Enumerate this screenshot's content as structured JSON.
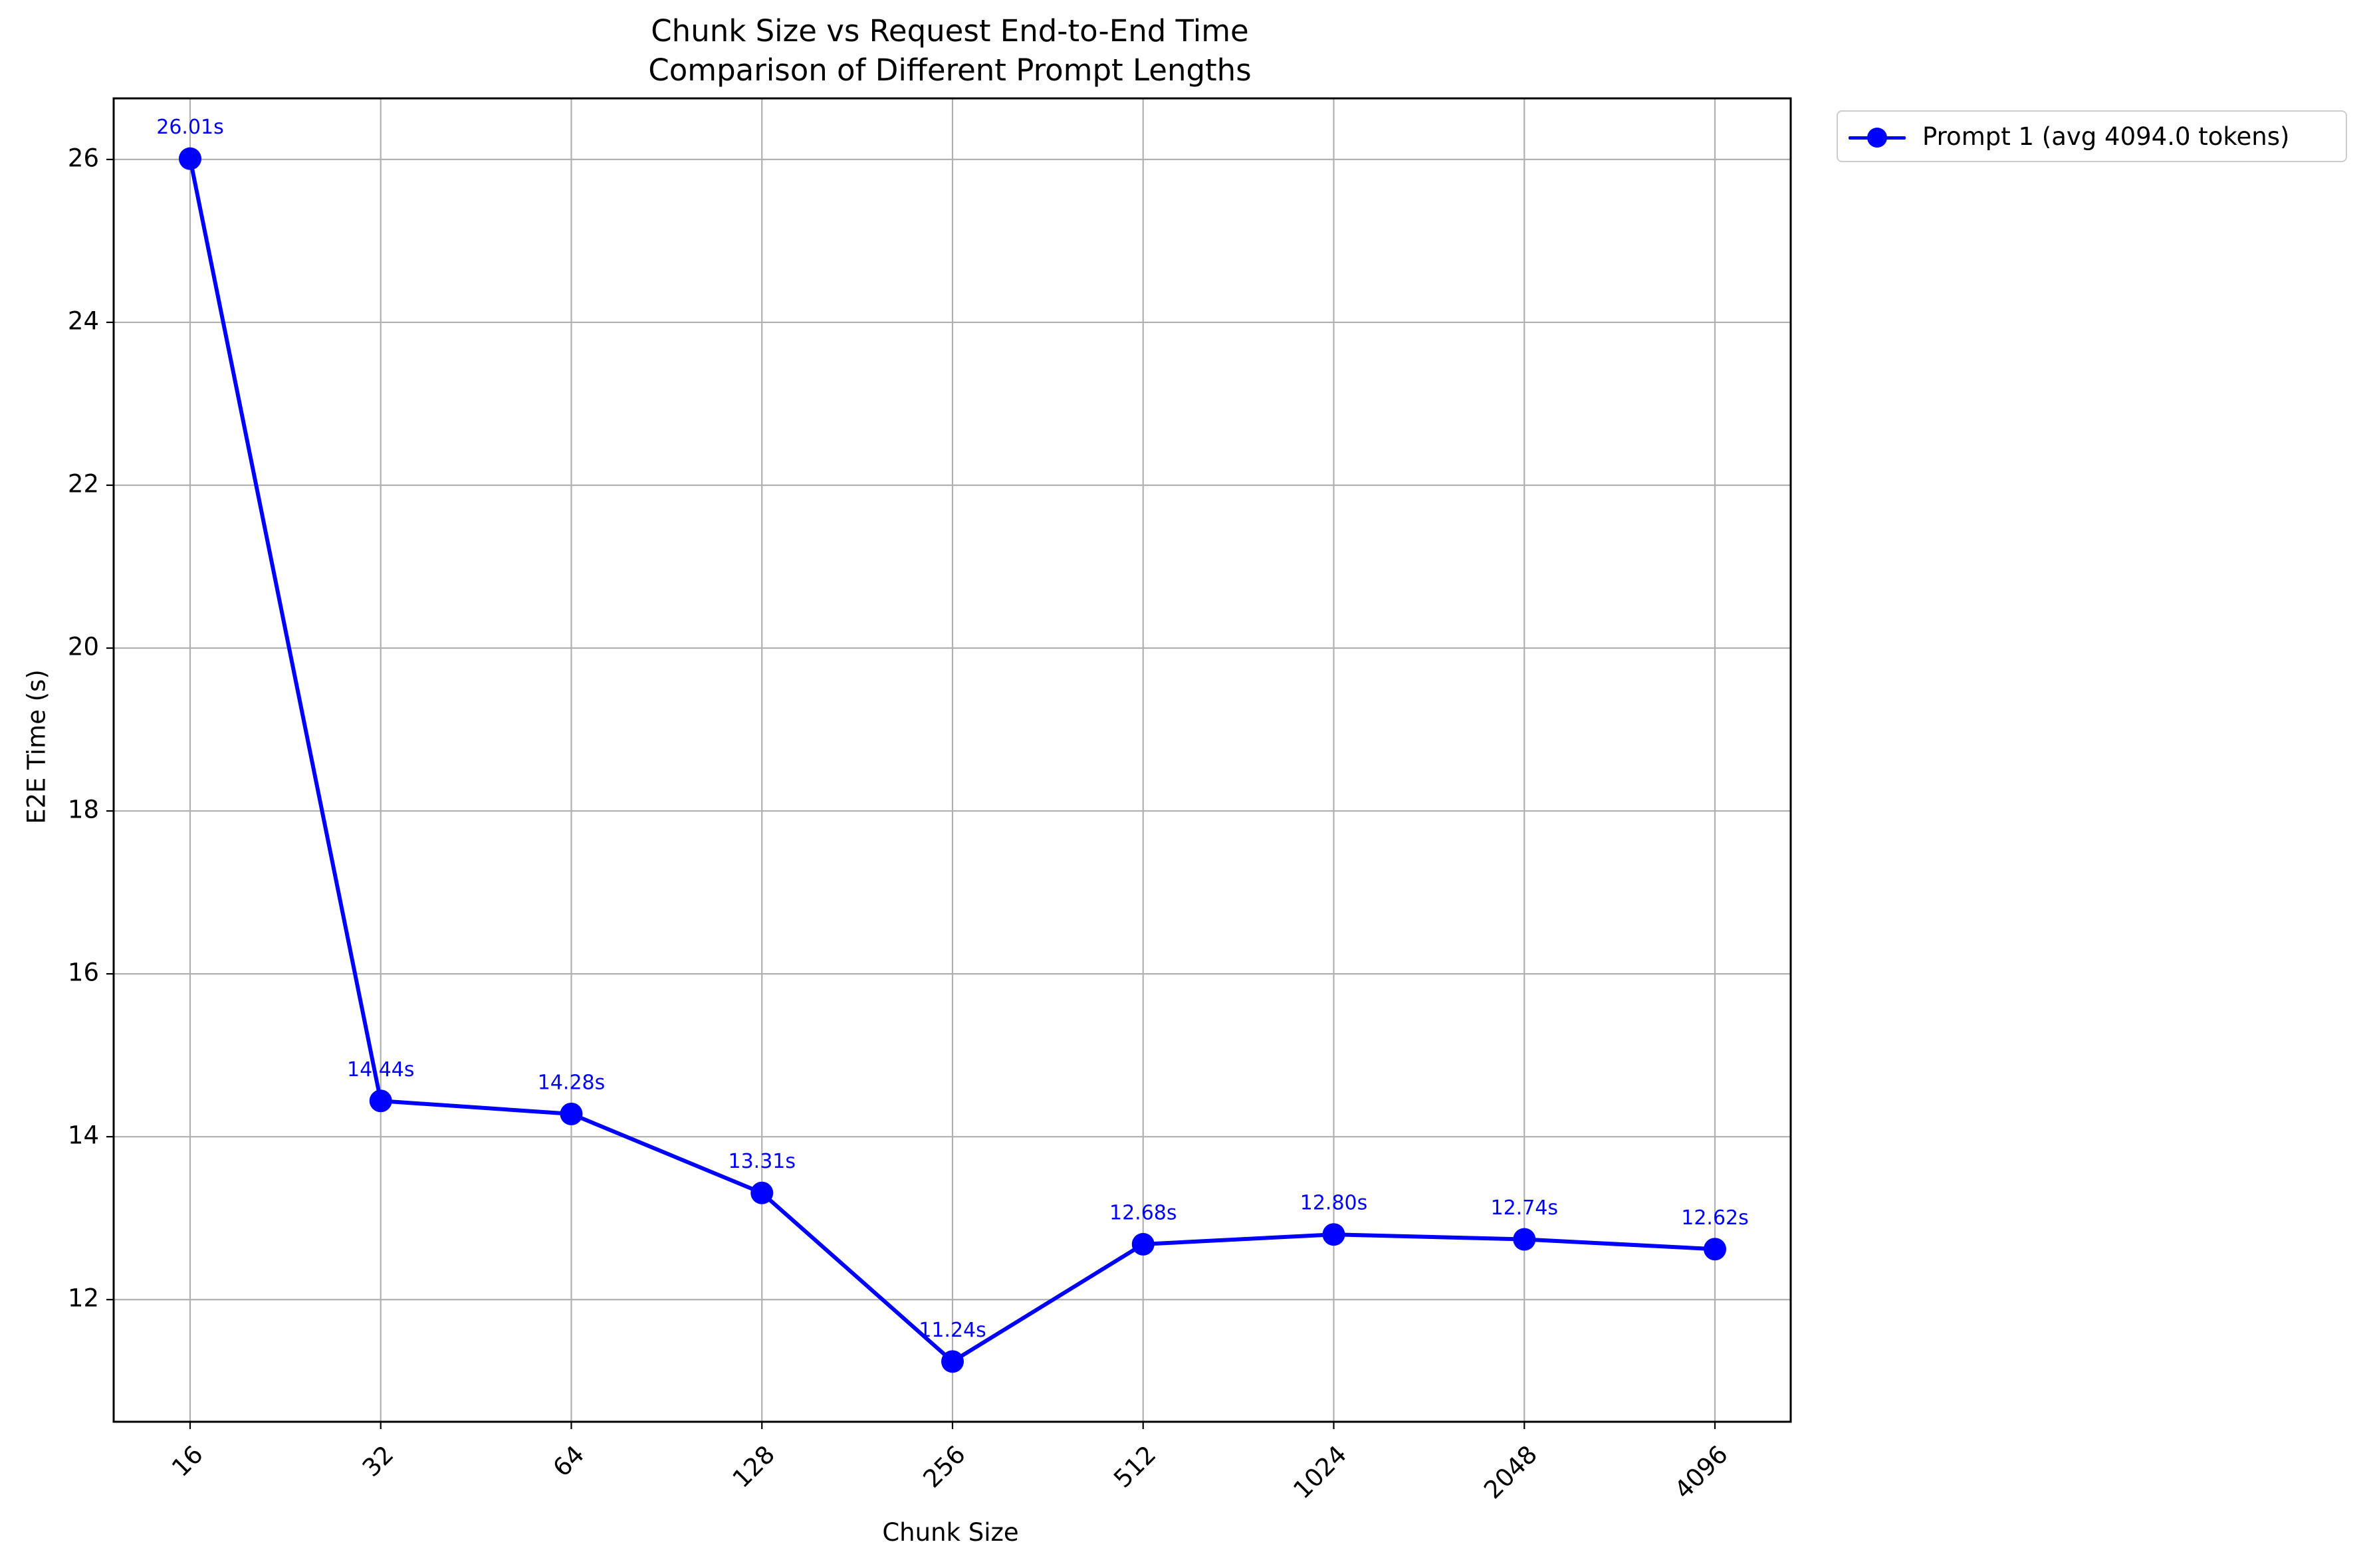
{
  "chart_data": {
    "type": "line",
    "title": "Chunk Size vs Request End-to-End Time",
    "subtitle": "Comparison of Different Prompt Lengths",
    "xlabel": "Chunk Size",
    "ylabel": "E2E Time (s)",
    "categories": [
      "16",
      "32",
      "64",
      "128",
      "256",
      "512",
      "1024",
      "2048",
      "4096"
    ],
    "series": [
      {
        "name": "Prompt 1 (avg 4094.0 tokens)",
        "values": [
          26.01,
          14.44,
          14.28,
          13.31,
          11.24,
          12.68,
          12.8,
          12.74,
          12.62
        ],
        "data_labels": [
          "26.01s",
          "14.44s",
          "14.28s",
          "13.31s",
          "11.24s",
          "12.68s",
          "12.80s",
          "12.74s",
          "12.62s"
        ],
        "color": "#0000ff"
      }
    ],
    "ylim": [
      10.5,
      26.75
    ],
    "yticks": [
      12,
      14,
      16,
      18,
      20,
      22,
      24,
      26
    ],
    "grid": true,
    "legend_position": "outside-top-right"
  }
}
